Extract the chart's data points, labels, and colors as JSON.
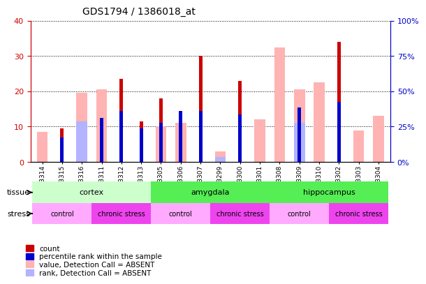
{
  "title": "GDS1794 / 1386018_at",
  "samples": [
    "GSM53314",
    "GSM53315",
    "GSM53316",
    "GSM53311",
    "GSM53312",
    "GSM53313",
    "GSM53305",
    "GSM53306",
    "GSM53307",
    "GSM53299",
    "GSM53300",
    "GSM53301",
    "GSM53308",
    "GSM53309",
    "GSM53310",
    "GSM53302",
    "GSM53303",
    "GSM53304"
  ],
  "count_values": [
    0,
    9.5,
    0,
    12.5,
    23.5,
    11.5,
    18.0,
    0,
    30.0,
    0,
    23.0,
    0,
    0,
    0,
    0,
    34.0,
    0,
    0
  ],
  "percentile_values": [
    0,
    7.0,
    0,
    12.5,
    14.5,
    9.5,
    11.0,
    14.5,
    14.5,
    0,
    13.5,
    0,
    0,
    15.5,
    0,
    17.0,
    0,
    0
  ],
  "absent_value_vals": [
    8.5,
    0,
    19.5,
    20.5,
    0,
    0,
    10.0,
    11.0,
    0,
    3.0,
    0,
    12.0,
    32.5,
    20.5,
    22.5,
    0,
    9.0,
    13.0
  ],
  "absent_rank_vals": [
    0,
    0,
    11.5,
    0,
    0,
    0,
    0,
    0,
    0,
    1.5,
    0,
    0,
    0,
    11.0,
    0,
    0,
    0,
    0
  ],
  "count_color": "#cc0000",
  "percentile_color": "#0000cc",
  "absent_value_color": "#ffb3b3",
  "absent_rank_color": "#b3b3ff",
  "ylim_left": [
    0,
    40
  ],
  "ylim_right": [
    0,
    100
  ],
  "yticks_left": [
    0,
    10,
    20,
    30,
    40
  ],
  "yticks_right": [
    0,
    25,
    50,
    75,
    100
  ],
  "ylabel_left_color": "#cc0000",
  "ylabel_right_color": "#0000cc",
  "tissue_groups": [
    {
      "label": "cortex",
      "start": 0,
      "end": 6,
      "color": "#ccffcc"
    },
    {
      "label": "amygdala",
      "start": 6,
      "end": 12,
      "color": "#55ee55"
    },
    {
      "label": "hippocampus",
      "start": 12,
      "end": 18,
      "color": "#55ee55"
    }
  ],
  "stress_groups": [
    {
      "label": "control",
      "start": 0,
      "end": 3,
      "color": "#ffaaff"
    },
    {
      "label": "chronic stress",
      "start": 3,
      "end": 6,
      "color": "#ee44ee"
    },
    {
      "label": "control",
      "start": 6,
      "end": 9,
      "color": "#ffaaff"
    },
    {
      "label": "chronic stress",
      "start": 9,
      "end": 12,
      "color": "#ee44ee"
    },
    {
      "label": "control",
      "start": 12,
      "end": 15,
      "color": "#ffaaff"
    },
    {
      "label": "chronic stress",
      "start": 15,
      "end": 18,
      "color": "#ee44ee"
    }
  ]
}
